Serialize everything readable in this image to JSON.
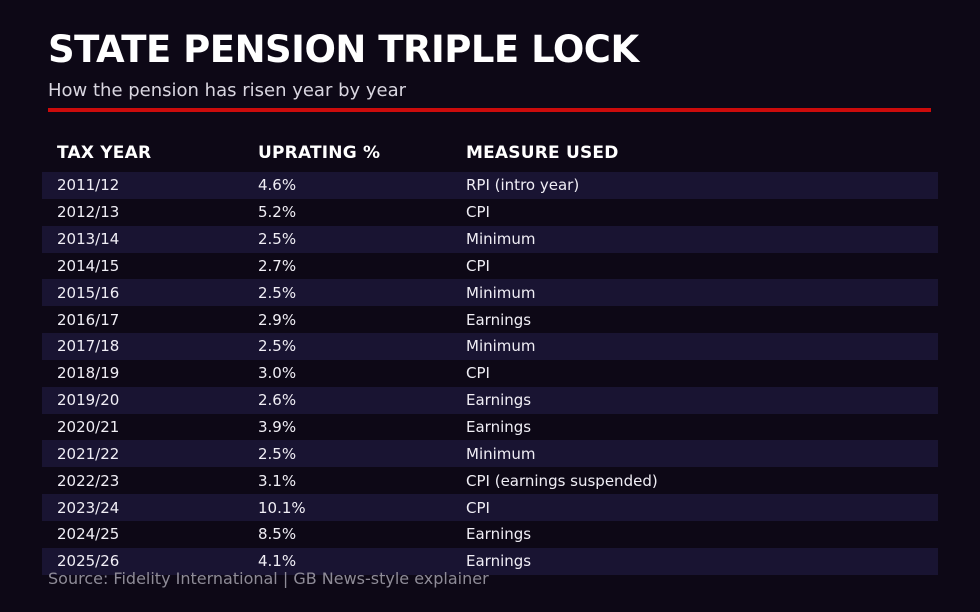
{
  "chart_data": {
    "type": "table",
    "title": "STATE PENSION TRIPLE LOCK",
    "subtitle": "How the pension has risen year by year",
    "columns": [
      "TAX YEAR",
      "UPRATING %",
      "MEASURE USED"
    ],
    "rows": [
      [
        "2011/12",
        "4.6%",
        "RPI (intro year)"
      ],
      [
        "2012/13",
        "5.2%",
        "CPI"
      ],
      [
        "2013/14",
        "2.5%",
        "Minimum"
      ],
      [
        "2014/15",
        "2.7%",
        "CPI"
      ],
      [
        "2015/16",
        "2.5%",
        "Minimum"
      ],
      [
        "2016/17",
        "2.9%",
        "Earnings"
      ],
      [
        "2017/18",
        "2.5%",
        "Minimum"
      ],
      [
        "2018/19",
        "3.0%",
        "CPI"
      ],
      [
        "2019/20",
        "2.6%",
        "Earnings"
      ],
      [
        "2020/21",
        "3.9%",
        "Earnings"
      ],
      [
        "2021/22",
        "2.5%",
        "Minimum"
      ],
      [
        "2022/23",
        "3.1%",
        "CPI (earnings suspended)"
      ],
      [
        "2023/24",
        "10.1%",
        "CPI"
      ],
      [
        "2024/25",
        "8.5%",
        "Earnings"
      ],
      [
        "2025/26",
        "4.1%",
        "Earnings"
      ]
    ],
    "source": "Source: Fidelity International | GB News-style explainer",
    "layout": {
      "legend": "none",
      "grid": "off",
      "row_striping": "odd rows shaded"
    }
  },
  "colors": {
    "background": "#0d0816",
    "row_stripe": "#191432",
    "accent_red": "#cc0b0b",
    "title_text": "#ffffff",
    "subtitle_text": "#d9d6e0",
    "row_text": "#f0eef5",
    "source_text": "#8e8b97"
  }
}
